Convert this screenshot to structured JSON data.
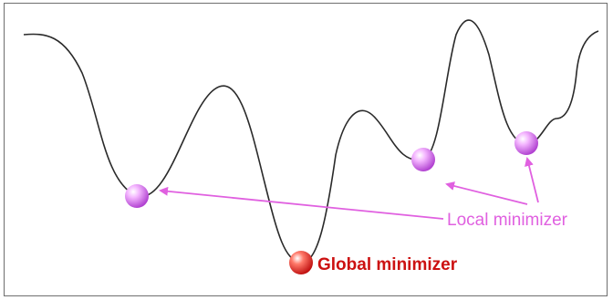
{
  "labels": {
    "local": "Local minimizer",
    "global": "Global minimizer"
  },
  "colors": {
    "curve": "#2a2a2a",
    "local": "#e060e0",
    "global": "#cc1111",
    "local_ball": "#d878f0",
    "global_ball": "#ee3333"
  }
}
